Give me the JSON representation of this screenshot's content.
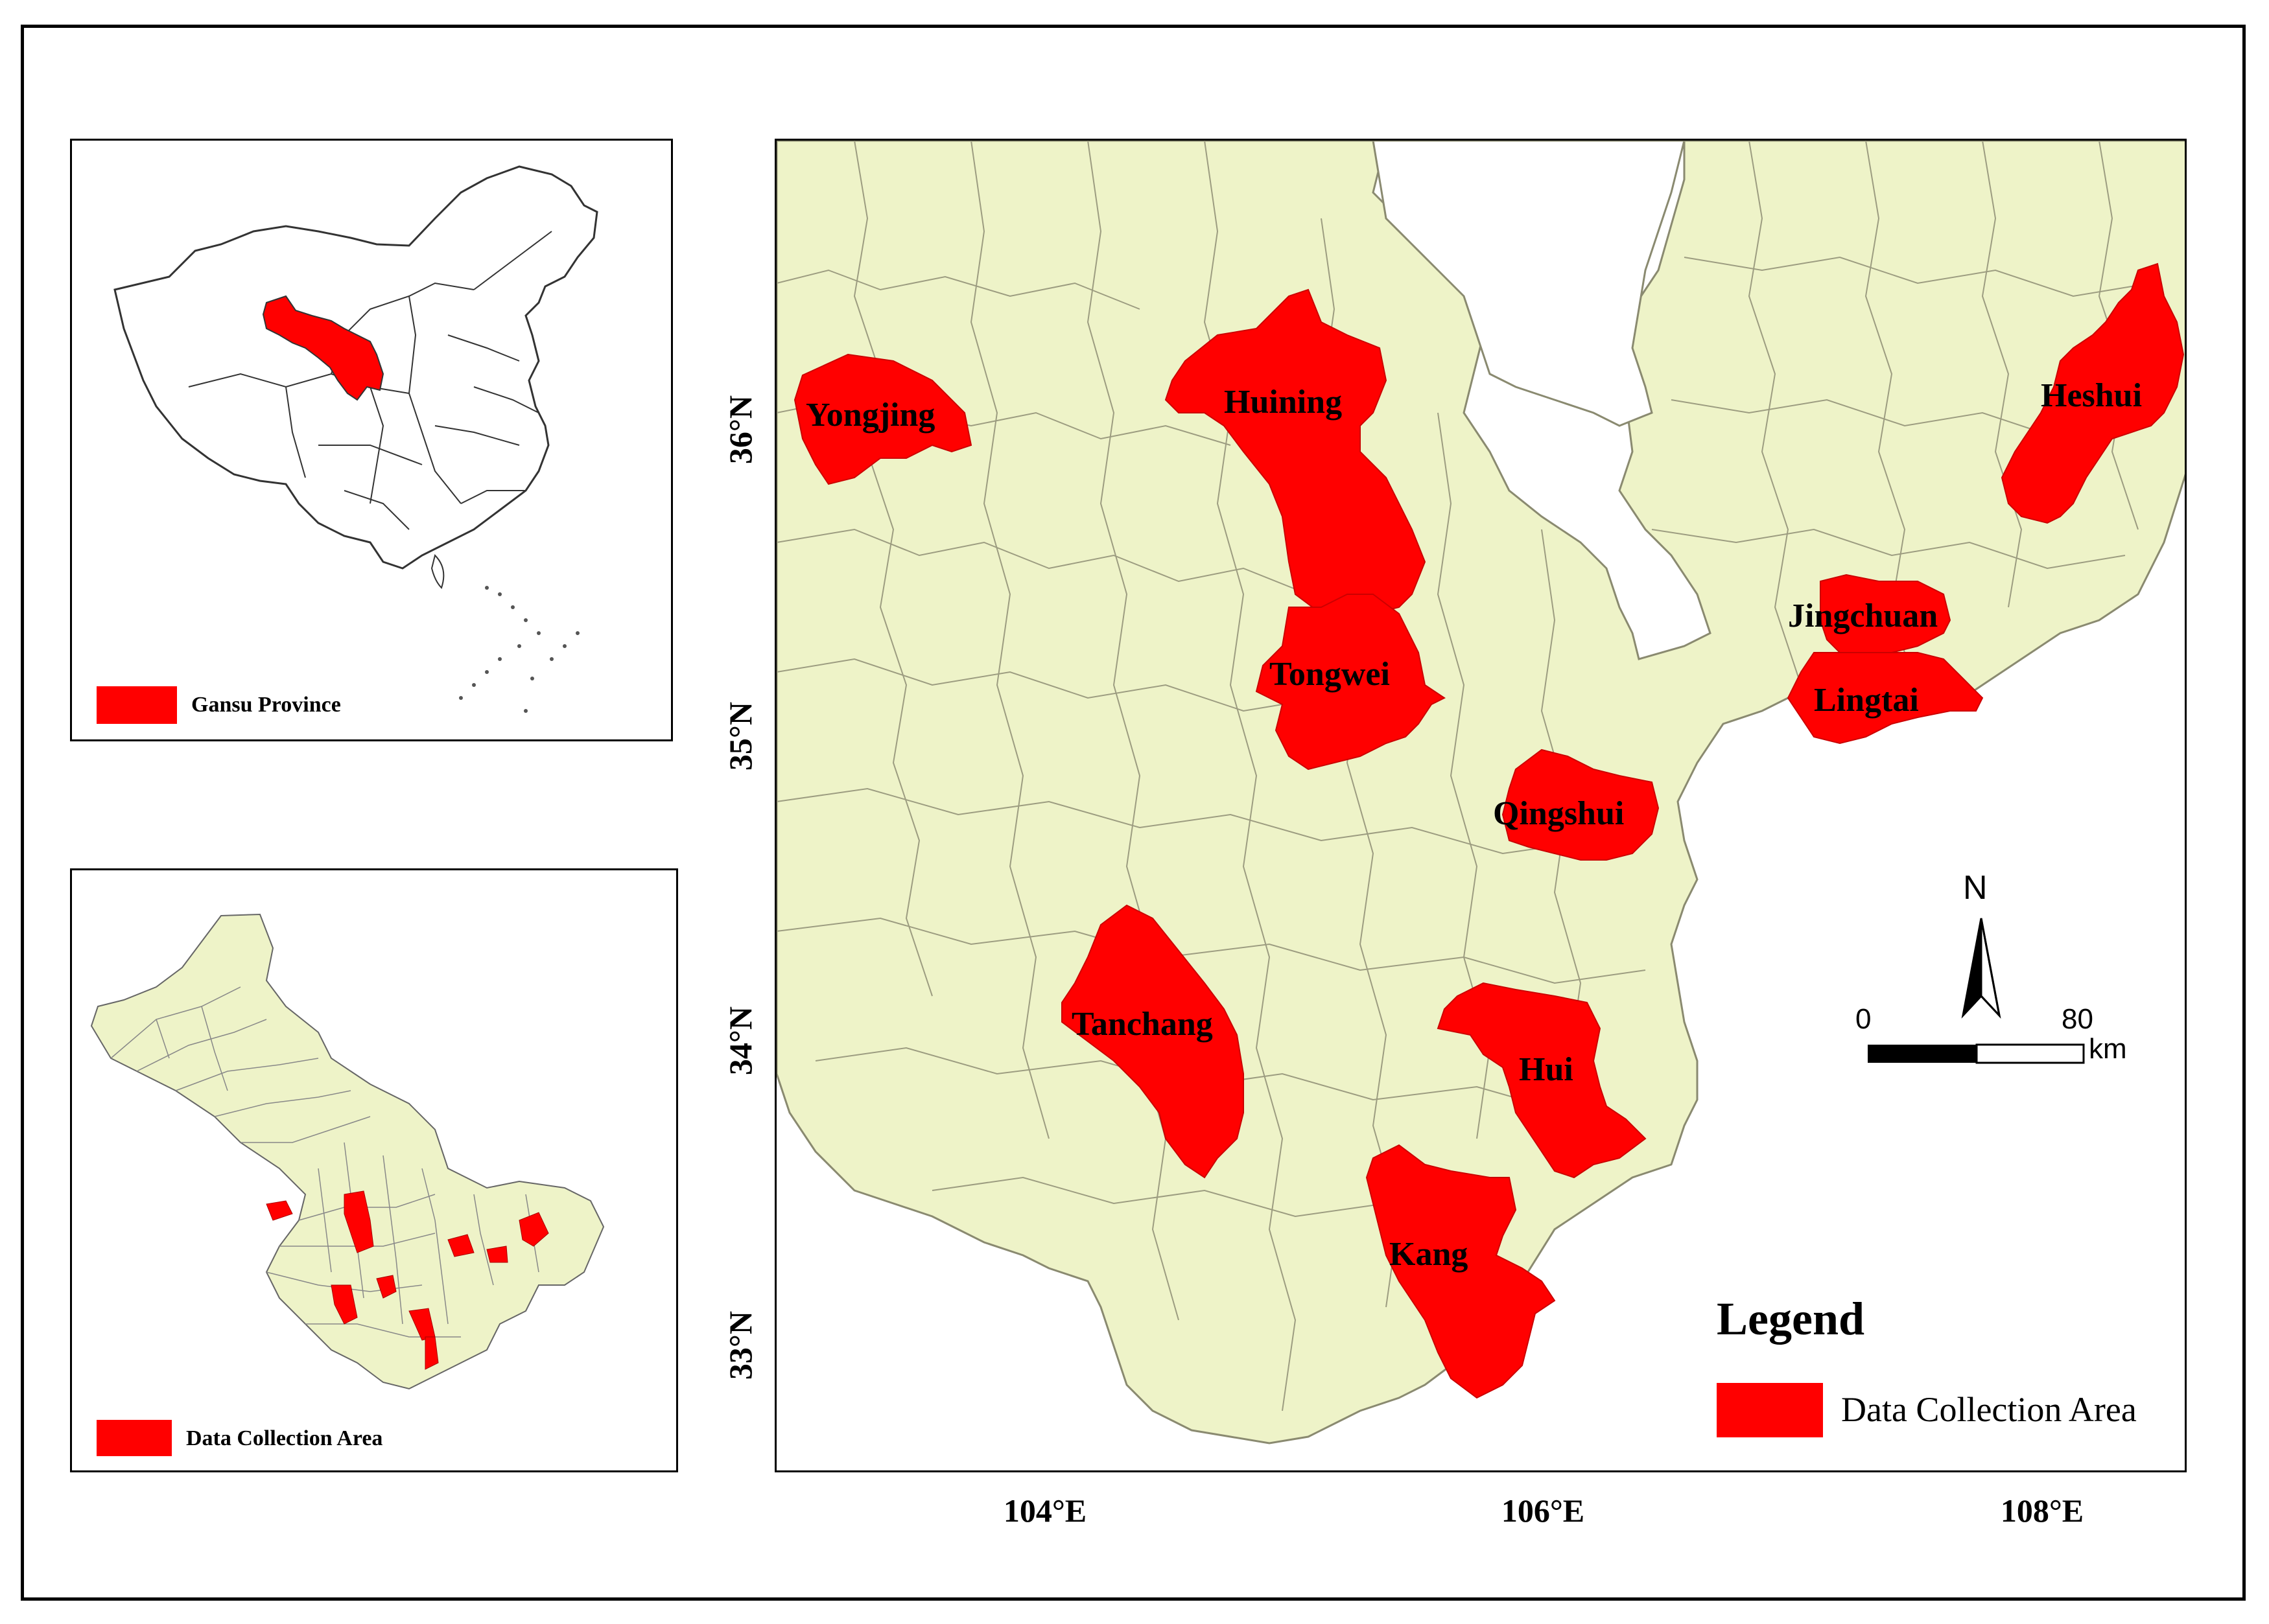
{
  "inset_china": {
    "legend_label": "Gansu Province",
    "highlight_color": "#ff0000"
  },
  "inset_gansu": {
    "legend_label": "Data Collection Area",
    "fill_color": "#eef3c8"
  },
  "main_map": {
    "background_fill": "#eef3c8",
    "highlight_color": "#ff0000",
    "latitude_labels": [
      "36°N",
      "35°N",
      "34°N",
      "33°N"
    ],
    "longitude_labels": [
      "104°E",
      "106°E",
      "108°E"
    ],
    "counties": [
      {
        "name": "Yongjing"
      },
      {
        "name": "Huining"
      },
      {
        "name": "Tongwei"
      },
      {
        "name": "Qingshui"
      },
      {
        "name": "Tanchang"
      },
      {
        "name": "Hui"
      },
      {
        "name": "Kang"
      },
      {
        "name": "Heshui"
      },
      {
        "name": "Jingchuan"
      },
      {
        "name": "Lingtai"
      }
    ],
    "legend": {
      "title": "Legend",
      "item_label": "Data Collection Area"
    },
    "north_arrow": {
      "label": "N",
      "icon": "north-arrow-icon"
    },
    "scale_bar": {
      "start": "0",
      "end": "80",
      "unit": "km"
    }
  }
}
